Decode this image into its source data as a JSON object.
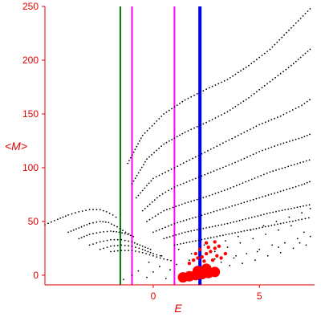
{
  "chart_data": {
    "type": "scatter",
    "xlabel": "E",
    "ylabel": "<M>",
    "xlim": [
      -5.1,
      7.6
    ],
    "ylim": [
      -9,
      250
    ],
    "x_ticks": [
      0,
      5
    ],
    "x_tick_labels": [
      "0",
      "5"
    ],
    "y_ticks": [
      0,
      50,
      100,
      150,
      200,
      250
    ],
    "y_tick_labels": [
      "0",
      "50",
      "100",
      "150",
      "200",
      "250"
    ],
    "axis_color": "#e00000",
    "vertical_lines": [
      {
        "x": -1.55,
        "color": "#007700",
        "width": 2
      },
      {
        "x": -1.0,
        "color": "#ff00ff",
        "width": 2
      },
      {
        "x": 1.0,
        "color": "#ff00ff",
        "width": 2
      },
      {
        "x": 2.2,
        "color": "#0000ff",
        "width": 4
      }
    ],
    "series": [
      {
        "kind": "curve",
        "color": "#000000",
        "points": [
          [
            -5.1,
            47
          ],
          [
            -4.5,
            52
          ],
          [
            -4,
            56
          ],
          [
            -3.5,
            59
          ],
          [
            -3,
            61
          ],
          [
            -2.5,
            61
          ],
          [
            -2.2,
            59
          ],
          [
            -1.9,
            56
          ],
          [
            -1.6,
            52
          ]
        ]
      },
      {
        "kind": "curve",
        "color": "#000000",
        "points": [
          [
            -4,
            40
          ],
          [
            -3.5,
            44
          ],
          [
            -3,
            48
          ],
          [
            -2.5,
            50
          ],
          [
            -2.1,
            49
          ],
          [
            -1.7,
            45
          ],
          [
            -1.3,
            40
          ],
          [
            -1,
            37
          ]
        ]
      },
      {
        "kind": "curve",
        "color": "#000000",
        "points": [
          [
            -3.5,
            34
          ],
          [
            -3,
            38
          ],
          [
            -2.5,
            40
          ],
          [
            -2,
            41
          ],
          [
            -1.6,
            40
          ],
          [
            -1.2,
            38
          ],
          [
            -0.8,
            35
          ]
        ]
      },
      {
        "kind": "curve",
        "color": "#000000",
        "points": [
          [
            -3,
            28
          ],
          [
            -2.5,
            31
          ],
          [
            -2,
            33
          ],
          [
            -1.5,
            33
          ],
          [
            -1,
            31
          ],
          [
            -0.5,
            27
          ],
          [
            0,
            23
          ]
        ]
      },
      {
        "kind": "curve",
        "color": "#000000",
        "points": [
          [
            -2.5,
            24
          ],
          [
            -2,
            27
          ],
          [
            -1.5,
            28
          ],
          [
            -1,
            27
          ],
          [
            -0.5,
            24
          ],
          [
            0,
            20
          ],
          [
            0.5,
            17
          ]
        ]
      },
      {
        "kind": "curve",
        "color": "#000000",
        "points": [
          [
            -2,
            22
          ],
          [
            -1.5,
            23
          ],
          [
            -1,
            23
          ],
          [
            -0.5,
            21
          ],
          [
            0,
            18
          ],
          [
            0.5,
            15
          ],
          [
            1,
            13
          ]
        ]
      },
      {
        "kind": "curve",
        "color": "#000000",
        "points": [
          [
            -1.2,
            104
          ],
          [
            -0.5,
            130
          ],
          [
            0.5,
            150
          ],
          [
            1.5,
            163
          ],
          [
            2.5,
            173
          ],
          [
            3.5,
            182
          ],
          [
            4.5,
            195
          ],
          [
            5.5,
            210
          ],
          [
            6.5,
            230
          ],
          [
            7.5,
            250
          ]
        ]
      },
      {
        "kind": "curve",
        "color": "#000000",
        "points": [
          [
            -1,
            85
          ],
          [
            -0.3,
            108
          ],
          [
            0.5,
            122
          ],
          [
            1.5,
            133
          ],
          [
            2.5,
            142
          ],
          [
            3.5,
            152
          ],
          [
            4.5,
            165
          ],
          [
            5.5,
            180
          ],
          [
            6.5,
            195
          ],
          [
            7.5,
            212
          ]
        ]
      },
      {
        "kind": "curve",
        "color": "#000000",
        "points": [
          [
            -0.8,
            72
          ],
          [
            0,
            90
          ],
          [
            1,
            100
          ],
          [
            2,
            110
          ],
          [
            3,
            120
          ],
          [
            4,
            130
          ],
          [
            5,
            140
          ],
          [
            6,
            148
          ],
          [
            7,
            158
          ],
          [
            7.5,
            165
          ]
        ]
      },
      {
        "kind": "curve",
        "color": "#000000",
        "points": [
          [
            -0.5,
            60
          ],
          [
            0.3,
            74
          ],
          [
            1,
            82
          ],
          [
            2,
            90
          ],
          [
            3,
            98
          ],
          [
            4,
            106
          ],
          [
            5,
            115
          ],
          [
            6,
            122
          ],
          [
            7,
            128
          ],
          [
            7.5,
            132
          ]
        ]
      },
      {
        "kind": "curve",
        "color": "#000000",
        "points": [
          [
            -0.3,
            50
          ],
          [
            0.5,
            60
          ],
          [
            1.5,
            67
          ],
          [
            2.5,
            73
          ],
          [
            3.5,
            80
          ],
          [
            4.5,
            88
          ],
          [
            5.5,
            96
          ],
          [
            6.5,
            102
          ],
          [
            7.5,
            108
          ]
        ]
      },
      {
        "kind": "curve",
        "color": "#000000",
        "points": [
          [
            0,
            40
          ],
          [
            1,
            48
          ],
          [
            2,
            54
          ],
          [
            3,
            60
          ],
          [
            4,
            66
          ],
          [
            5,
            72
          ],
          [
            6,
            78
          ],
          [
            7,
            84
          ],
          [
            7.5,
            88
          ]
        ]
      },
      {
        "kind": "curve",
        "color": "#000000",
        "points": [
          [
            0.5,
            34
          ],
          [
            1.5,
            40
          ],
          [
            2.5,
            44
          ],
          [
            3.5,
            48
          ],
          [
            4.5,
            53
          ],
          [
            5.5,
            58
          ],
          [
            6.5,
            62
          ],
          [
            7.5,
            66
          ]
        ]
      },
      {
        "kind": "curve",
        "color": "#000000",
        "points": [
          [
            1,
            28
          ],
          [
            2,
            32
          ],
          [
            3,
            36
          ],
          [
            4,
            40
          ],
          [
            5,
            44
          ],
          [
            6,
            48
          ],
          [
            7,
            52
          ],
          [
            7.5,
            54
          ]
        ]
      },
      {
        "kind": "cloud",
        "color": "#000000",
        "points": [
          [
            -1.4,
            -4
          ],
          [
            -1,
            0
          ],
          [
            -0.7,
            4
          ],
          [
            -0.3,
            -2
          ],
          [
            0,
            3
          ],
          [
            0.3,
            8
          ],
          [
            0.6,
            -3
          ],
          [
            0.8,
            5
          ],
          [
            1.1,
            10
          ],
          [
            1.4,
            2
          ],
          [
            1.7,
            14
          ],
          [
            2,
            6
          ],
          [
            2.3,
            18
          ],
          [
            2.6,
            8
          ],
          [
            2.9,
            22
          ],
          [
            3.2,
            12
          ],
          [
            3.5,
            26
          ],
          [
            3.8,
            16
          ],
          [
            4.1,
            30
          ],
          [
            4.4,
            20
          ],
          [
            4.7,
            34
          ],
          [
            5,
            24
          ],
          [
            5.3,
            38
          ],
          [
            5.6,
            28
          ],
          [
            5.9,
            42
          ],
          [
            6.2,
            30
          ],
          [
            6.5,
            46
          ],
          [
            6.8,
            34
          ],
          [
            7.1,
            40
          ],
          [
            7.4,
            36
          ],
          [
            3,
            5
          ],
          [
            3.6,
            9
          ],
          [
            4.2,
            11
          ],
          [
            4.8,
            14
          ],
          [
            5.4,
            18
          ],
          [
            6,
            21
          ],
          [
            6.6,
            25
          ],
          [
            7.2,
            28
          ],
          [
            -0.2,
            12
          ],
          [
            0.4,
            18
          ],
          [
            1.2,
            24
          ],
          [
            1.8,
            20
          ],
          [
            2.4,
            28
          ],
          [
            3.4,
            32
          ],
          [
            4,
            36
          ],
          [
            4.6,
            42
          ],
          [
            5.2,
            46
          ],
          [
            5.8,
            50
          ],
          [
            6.4,
            54
          ],
          [
            7,
            58
          ],
          [
            7.4,
            62
          ],
          [
            6.9,
            30
          ],
          [
            5.9,
            26
          ],
          [
            4.9,
            22
          ],
          [
            3.9,
            18
          ],
          [
            2.9,
            15
          ]
        ]
      },
      {
        "kind": "red-small",
        "color": "#ff0000",
        "points": [
          [
            1.9,
            14
          ],
          [
            2.1,
            16
          ],
          [
            2.3,
            17
          ],
          [
            2.5,
            20
          ],
          [
            2.7,
            22
          ],
          [
            2.9,
            25
          ],
          [
            3.1,
            27
          ],
          [
            2.4,
            13
          ],
          [
            2.8,
            14
          ],
          [
            3.2,
            16
          ],
          [
            2.0,
            20
          ],
          [
            2.6,
            26
          ],
          [
            3.0,
            18
          ],
          [
            2.2,
            24
          ],
          [
            1.7,
            11
          ],
          [
            3.4,
            20
          ],
          [
            2.5,
            30
          ],
          [
            2.9,
            31
          ]
        ]
      },
      {
        "kind": "red-large",
        "color": "#ff0000",
        "points": [
          [
            1.4,
            -2
          ],
          [
            1.7,
            -1
          ],
          [
            2.0,
            0
          ],
          [
            2.3,
            1
          ],
          [
            2.6,
            2
          ],
          [
            2.9,
            3
          ],
          [
            2.1,
            4
          ],
          [
            2.5,
            6
          ]
        ]
      }
    ]
  }
}
